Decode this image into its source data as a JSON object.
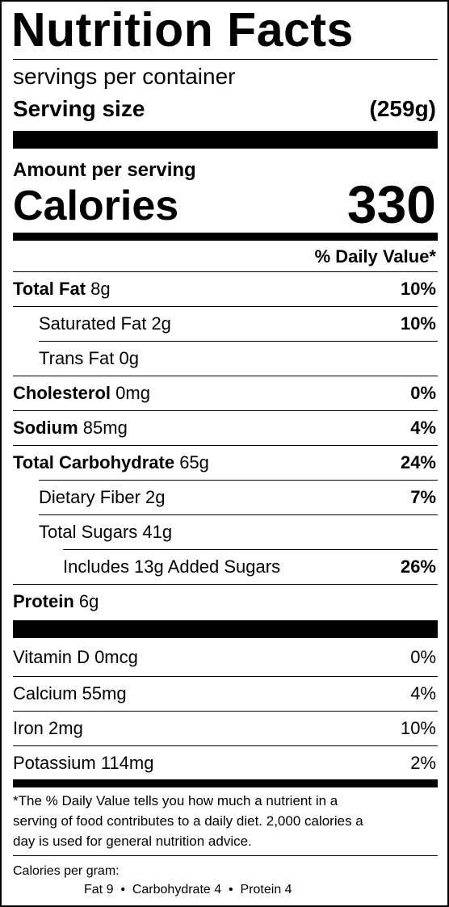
{
  "header": {
    "title": "Nutrition Facts",
    "servings_line": "servings per container",
    "serving_size_label": "Serving size",
    "serving_size_value": "(259g)"
  },
  "calories": {
    "amount_label": "Amount per serving",
    "label": "Calories",
    "value": "330"
  },
  "daily_value_header": "% Daily Value*",
  "nutrients": {
    "total_fat": {
      "name": "Total Fat",
      "amount": "8g",
      "dv": "10%"
    },
    "saturated_fat": {
      "name": "Saturated Fat",
      "amount": "2g",
      "dv": "10%"
    },
    "trans_fat": {
      "name": "Trans Fat",
      "amount": "0g"
    },
    "cholesterol": {
      "name": "Cholesterol",
      "amount": "0mg",
      "dv": "0%"
    },
    "sodium": {
      "name": "Sodium",
      "amount": "85mg",
      "dv": "4%"
    },
    "total_carbohydrate": {
      "name": "Total Carbohydrate",
      "amount": "65g",
      "dv": "24%"
    },
    "dietary_fiber": {
      "name": "Dietary Fiber",
      "amount": "2g",
      "dv": "7%"
    },
    "total_sugars": {
      "name": "Total Sugars",
      "amount": "41g"
    },
    "added_sugars": {
      "name": "Includes 13g Added Sugars",
      "dv": "26%"
    },
    "protein": {
      "name": "Protein",
      "amount": "6g"
    }
  },
  "vitamins": [
    {
      "name": "Vitamin D 0mcg",
      "dv": "0%"
    },
    {
      "name": "Calcium 55mg",
      "dv": "4%"
    },
    {
      "name": "Iron 2mg",
      "dv": "10%"
    },
    {
      "name": "Potassium 114mg",
      "dv": "2%"
    }
  ],
  "footnote": {
    "line1": "*The % Daily Value tells you how much a nutrient in a",
    "line2": "serving of food contributes to a daily diet. 2,000 calories a",
    "line3": "day is used for general nutrition advice."
  },
  "calories_per_gram": {
    "label": "Calories per gram:",
    "values": "Fat 9  •  Carbohydrate 4  •  Protein 4"
  }
}
